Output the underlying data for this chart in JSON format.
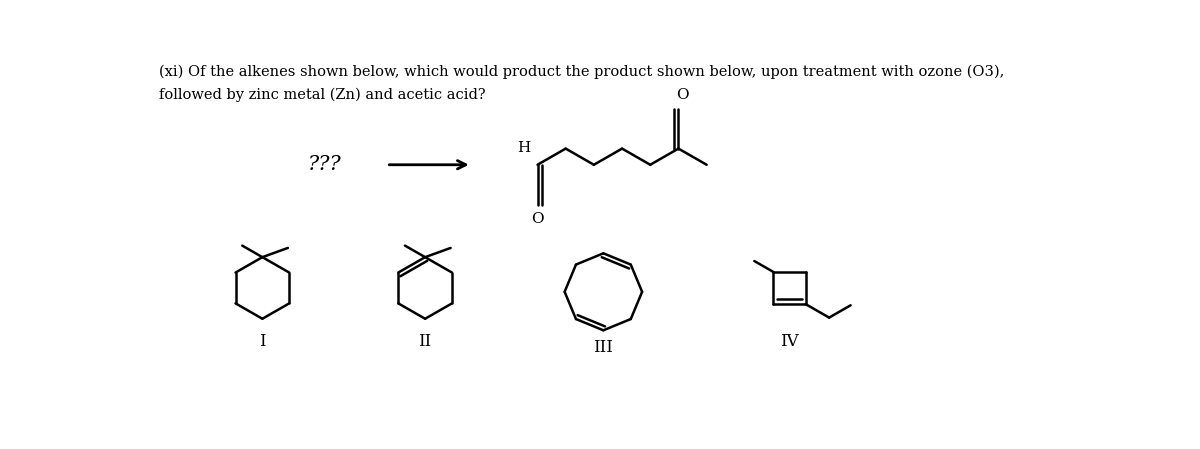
{
  "title_line1": "(xi) Of the alkenes shown below, which would product the product shown below, upon treatment with ozone (O3),",
  "title_line2": "followed by zinc metal (Zn) and acetic acid?",
  "bg_color": "#ffffff",
  "line_color": "#000000",
  "text_color": "#000000",
  "figsize": [
    12.0,
    4.49
  ],
  "dpi": 100,
  "label_I": "I",
  "label_II": "II",
  "label_III": "III",
  "label_IV": "IV",
  "qqq": "???",
  "h_label": "H",
  "o_label1": "O",
  "o_label2": "O"
}
